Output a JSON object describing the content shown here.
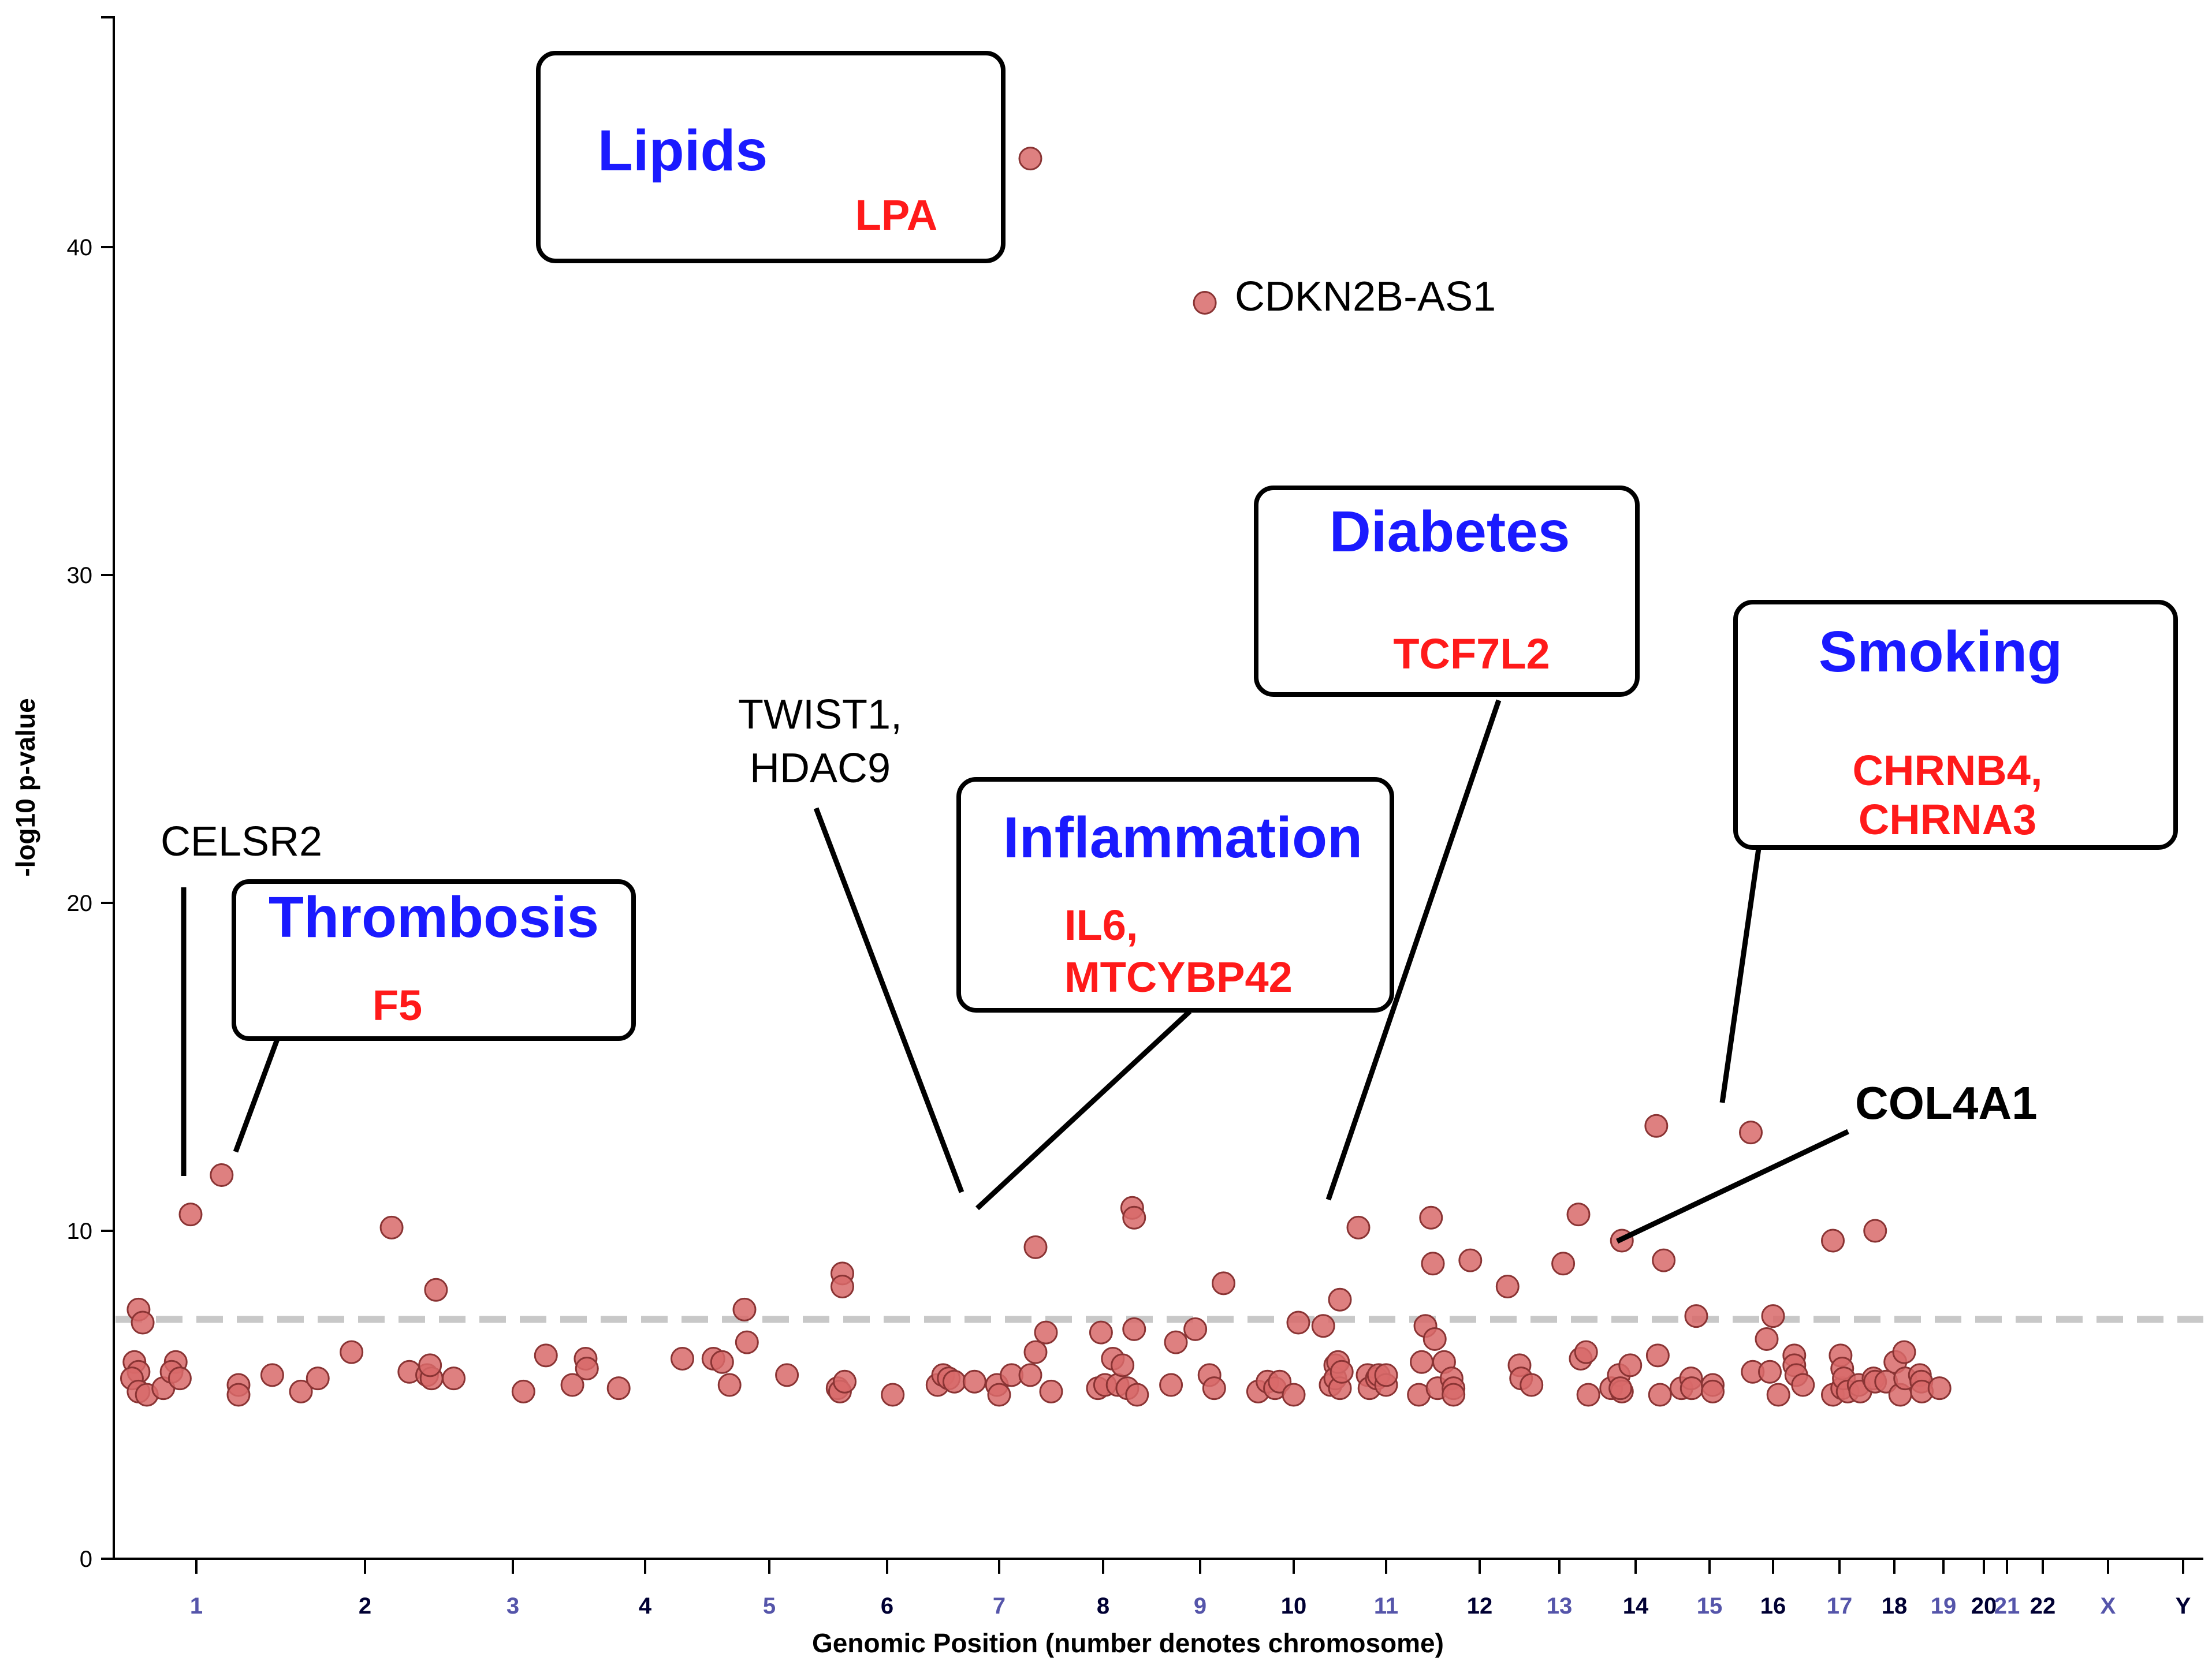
{
  "chart_data": {
    "type": "scatter",
    "title": "",
    "xlabel": "Genomic Position (number denotes chromosome)",
    "ylabel": "-log10 p-value",
    "ylim": [
      0,
      47
    ],
    "yticks": [
      0,
      10,
      20,
      30,
      40
    ],
    "threshold": 7.3,
    "grid": false,
    "chromosomes": [
      "1",
      "2",
      "3",
      "4",
      "5",
      "6",
      "7",
      "8",
      "9",
      "10",
      "11",
      "12",
      "13",
      "14",
      "15",
      "16",
      "17",
      "18",
      "19",
      "20",
      "21",
      "22",
      "X",
      "Y"
    ],
    "chromosome_label_colors": [
      "#5555aa",
      "#000033",
      "#5555aa",
      "#000033",
      "#5555aa",
      "#000033",
      "#5555aa",
      "#000033",
      "#5555aa",
      "#000033",
      "#5555aa",
      "#000033",
      "#5555aa",
      "#000033",
      "#5555aa",
      "#000033",
      "#5555aa",
      "#000033",
      "#5555aa",
      "#000033",
      "#5555aa",
      "#000033",
      "#5555aa",
      "#000033"
    ],
    "point_color": "#d86a6a",
    "points": [
      [
        0.3,
        7.6
      ],
      [
        0.35,
        7.2
      ],
      [
        0.25,
        6.0
      ],
      [
        0.3,
        5.7
      ],
      [
        0.22,
        5.5
      ],
      [
        0.3,
        5.1
      ],
      [
        0.4,
        5.0
      ],
      [
        0.6,
        5.2
      ],
      [
        0.75,
        6.0
      ],
      [
        0.7,
        5.7
      ],
      [
        0.8,
        5.5
      ],
      [
        0.93,
        10.5
      ],
      [
        1.15,
        11.7
      ],
      [
        1.25,
        5.3
      ],
      [
        1.25,
        5.0
      ],
      [
        1.45,
        5.6
      ],
      [
        1.62,
        5.1
      ],
      [
        1.72,
        5.5
      ],
      [
        1.92,
        6.3
      ],
      [
        2.18,
        10.1
      ],
      [
        2.3,
        5.7
      ],
      [
        2.42,
        5.6
      ],
      [
        2.45,
        5.5
      ],
      [
        2.44,
        5.9
      ],
      [
        2.48,
        8.2
      ],
      [
        2.6,
        5.5
      ],
      [
        3.08,
        5.1
      ],
      [
        3.25,
        6.2
      ],
      [
        3.45,
        5.3
      ],
      [
        3.55,
        6.1
      ],
      [
        3.56,
        5.8
      ],
      [
        3.8,
        5.2
      ],
      [
        4.3,
        6.1
      ],
      [
        4.55,
        6.1
      ],
      [
        4.62,
        6.0
      ],
      [
        4.68,
        5.3
      ],
      [
        4.8,
        7.6
      ],
      [
        4.82,
        6.6
      ],
      [
        5.15,
        5.6
      ],
      [
        5.58,
        5.2
      ],
      [
        5.6,
        5.1
      ],
      [
        5.62,
        8.7
      ],
      [
        5.62,
        8.3
      ],
      [
        5.64,
        5.4
      ],
      [
        6.05,
        5.0
      ],
      [
        6.45,
        5.3
      ],
      [
        6.5,
        5.6
      ],
      [
        6.55,
        5.5
      ],
      [
        6.6,
        5.4
      ],
      [
        6.78,
        5.4
      ],
      [
        6.98,
        5.3
      ],
      [
        7.0,
        5.0
      ],
      [
        7.12,
        5.6
      ],
      [
        7.35,
        9.5
      ],
      [
        7.3,
        5.6
      ],
      [
        7.35,
        6.3
      ],
      [
        7.45,
        6.9
      ],
      [
        7.5,
        5.1
      ],
      [
        7.95,
        5.2
      ],
      [
        7.98,
        6.9
      ],
      [
        8.02,
        5.3
      ],
      [
        8.1,
        6.1
      ],
      [
        8.15,
        5.3
      ],
      [
        8.2,
        5.9
      ],
      [
        8.25,
        5.2
      ],
      [
        8.3,
        10.7
      ],
      [
        8.32,
        10.4
      ],
      [
        8.35,
        5.0
      ],
      [
        8.32,
        7.0
      ],
      [
        8.7,
        5.3
      ],
      [
        8.75,
        6.6
      ],
      [
        8.95,
        7.0
      ],
      [
        9.1,
        5.6
      ],
      [
        9.15,
        5.2
      ],
      [
        9.25,
        8.4
      ],
      [
        9.62,
        5.1
      ],
      [
        9.72,
        5.4
      ],
      [
        9.8,
        5.2
      ],
      [
        9.85,
        5.4
      ],
      [
        10.0,
        5.0
      ],
      [
        10.05,
        7.2
      ],
      [
        10.32,
        7.1
      ],
      [
        10.4,
        5.3
      ],
      [
        10.45,
        5.9
      ],
      [
        10.45,
        5.5
      ],
      [
        10.48,
        6.0
      ],
      [
        10.5,
        5.2
      ],
      [
        10.5,
        7.9
      ],
      [
        10.52,
        5.7
      ],
      [
        10.7,
        10.1
      ],
      [
        10.8,
        5.6
      ],
      [
        10.82,
        5.2
      ],
      [
        10.9,
        5.5
      ],
      [
        10.92,
        5.6
      ],
      [
        11.0,
        5.3
      ],
      [
        11.0,
        5.6
      ],
      [
        11.35,
        5.0
      ],
      [
        11.38,
        6.0
      ],
      [
        11.42,
        7.1
      ],
      [
        11.48,
        10.4
      ],
      [
        11.5,
        9.0
      ],
      [
        11.52,
        6.7
      ],
      [
        11.55,
        5.2
      ],
      [
        11.62,
        6.0
      ],
      [
        11.7,
        5.5
      ],
      [
        11.72,
        5.2
      ],
      [
        11.72,
        5.0
      ],
      [
        11.9,
        9.1
      ],
      [
        12.35,
        8.3
      ],
      [
        12.5,
        5.9
      ],
      [
        12.52,
        5.5
      ],
      [
        12.65,
        5.3
      ],
      [
        13.05,
        9.0
      ],
      [
        13.25,
        10.5
      ],
      [
        13.28,
        6.1
      ],
      [
        13.35,
        6.3
      ],
      [
        13.38,
        5.0
      ],
      [
        13.68,
        5.2
      ],
      [
        13.78,
        5.6
      ],
      [
        13.82,
        5.1
      ],
      [
        13.8,
        5.2
      ],
      [
        13.82,
        9.7
      ],
      [
        13.93,
        5.9
      ],
      [
        14.28,
        13.2
      ],
      [
        14.3,
        6.2
      ],
      [
        14.33,
        5.0
      ],
      [
        14.38,
        9.1
      ],
      [
        14.62,
        5.2
      ],
      [
        14.75,
        5.5
      ],
      [
        14.76,
        5.2
      ],
      [
        14.82,
        7.4
      ],
      [
        15.05,
        5.3
      ],
      [
        15.05,
        5.1
      ],
      [
        15.65,
        13.0
      ],
      [
        15.68,
        5.7
      ],
      [
        15.9,
        6.7
      ],
      [
        15.95,
        5.7
      ],
      [
        16.0,
        7.4
      ],
      [
        16.08,
        5.0
      ],
      [
        16.32,
        6.2
      ],
      [
        16.32,
        5.9
      ],
      [
        16.35,
        5.6
      ],
      [
        16.45,
        5.3
      ],
      [
        16.9,
        9.7
      ],
      [
        16.9,
        5.0
      ],
      [
        17.02,
        6.2
      ],
      [
        17.05,
        5.2
      ],
      [
        17.05,
        5.8
      ],
      [
        17.08,
        5.5
      ],
      [
        17.15,
        5.1
      ],
      [
        17.35,
        5.3
      ],
      [
        17.38,
        5.1
      ],
      [
        17.62,
        5.5
      ],
      [
        17.65,
        10.0
      ],
      [
        17.65,
        5.4
      ],
      [
        17.85,
        5.4
      ],
      [
        18.02,
        6.0
      ],
      [
        18.12,
        5.0
      ],
      [
        18.2,
        6.3
      ],
      [
        18.22,
        5.5
      ],
      [
        18.52,
        5.6
      ],
      [
        18.55,
        5.4
      ],
      [
        18.56,
        5.1
      ],
      [
        18.92,
        5.2
      ]
    ],
    "annotations": [
      {
        "category": "Lipids",
        "genes": [
          "LPA"
        ]
      },
      {
        "category": "Thrombosis",
        "genes": [
          "F5"
        ]
      },
      {
        "category": "Inflammation",
        "genes": [
          "IL6,",
          "MTCYBP42"
        ]
      },
      {
        "category": "Diabetes",
        "genes": [
          "TCF7L2"
        ]
      },
      {
        "category": "Smoking",
        "genes": [
          "CHRNB4,",
          "CHRNA3"
        ]
      }
    ],
    "labels": [
      "CELSR2",
      "TWIST1,",
      "HDAC9",
      "CDKN2B-AS1",
      "COL4A1"
    ],
    "highlight_points": {
      "LPA": [
        7.3,
        42.7
      ],
      "CDKN2B-AS1": [
        9.05,
        38.3
      ]
    }
  }
}
